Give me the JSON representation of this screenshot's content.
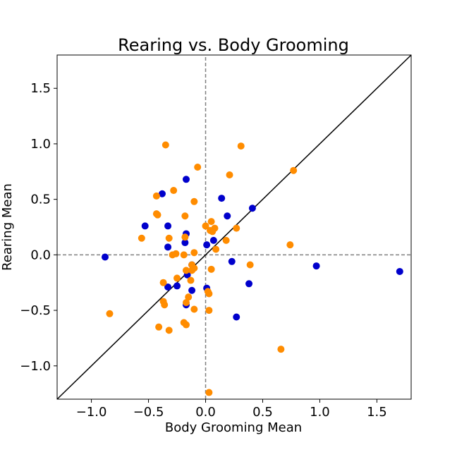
{
  "chart_data": {
    "type": "scatter",
    "title": "Rearing vs. Body Grooming",
    "xlabel": "Body Grooming Mean",
    "ylabel": "Rearing Mean",
    "xlim": [
      -1.3,
      1.8
    ],
    "ylim": [
      -1.3,
      1.8
    ],
    "xticks": [
      -1.0,
      -0.5,
      0.0,
      0.5,
      1.0,
      1.5
    ],
    "xtick_labels": [
      "−1.0",
      "−0.5",
      "0.0",
      "0.5",
      "1.0",
      "1.5"
    ],
    "yticks": [
      -1.0,
      -0.5,
      0.0,
      0.5,
      1.0,
      1.5
    ],
    "ytick_labels": [
      "−1.0",
      "−0.5",
      "0.0",
      "0.5",
      "1.0",
      "1.5"
    ],
    "grid": false,
    "legend": "none",
    "reference_lines": {
      "diagonal": "y = x",
      "horizontal_dashed_at": 0.0,
      "vertical_dashed_at": 0.0
    },
    "series": [
      {
        "color": "#0000cc",
        "points": [
          [
            -0.88,
            -0.02
          ],
          [
            -0.53,
            0.26
          ],
          [
            -0.38,
            0.55
          ],
          [
            -0.17,
            0.68
          ],
          [
            -0.33,
            0.26
          ],
          [
            -0.33,
            0.07
          ],
          [
            -0.18,
            0.11
          ],
          [
            -0.17,
            0.19
          ],
          [
            -0.12,
            -0.09
          ],
          [
            -0.16,
            -0.18
          ],
          [
            -0.25,
            -0.28
          ],
          [
            -0.33,
            -0.29
          ],
          [
            -0.12,
            -0.32
          ],
          [
            -0.17,
            -0.45
          ],
          [
            0.14,
            0.51
          ],
          [
            0.19,
            0.35
          ],
          [
            0.41,
            0.42
          ],
          [
            0.01,
            0.09
          ],
          [
            0.07,
            0.13
          ],
          [
            0.01,
            -0.3
          ],
          [
            0.23,
            -0.06
          ],
          [
            0.38,
            -0.26
          ],
          [
            0.27,
            -0.56
          ],
          [
            0.97,
            -0.1
          ],
          [
            1.7,
            -0.15
          ]
        ]
      },
      {
        "color": "#ff8c00",
        "points": [
          [
            -0.35,
            0.99
          ],
          [
            -0.07,
            0.79
          ],
          [
            0.31,
            0.98
          ],
          [
            0.21,
            0.72
          ],
          [
            0.77,
            0.76
          ],
          [
            -0.43,
            0.53
          ],
          [
            -0.28,
            0.58
          ],
          [
            -0.1,
            0.48
          ],
          [
            -0.43,
            0.37
          ],
          [
            -0.42,
            0.36
          ],
          [
            -0.18,
            0.35
          ],
          [
            -0.56,
            0.15
          ],
          [
            -0.32,
            0.15
          ],
          [
            -0.18,
            0.16
          ],
          [
            0.0,
            0.26
          ],
          [
            0.05,
            0.3
          ],
          [
            0.08,
            0.24
          ],
          [
            0.04,
            0.22
          ],
          [
            0.06,
            0.21
          ],
          [
            0.27,
            0.24
          ],
          [
            0.18,
            0.13
          ],
          [
            0.09,
            0.05
          ],
          [
            -0.29,
            0.0
          ],
          [
            -0.26,
            0.01
          ],
          [
            -0.19,
            0.0
          ],
          [
            -0.1,
            0.02
          ],
          [
            0.74,
            0.09
          ],
          [
            -0.12,
            -0.09
          ],
          [
            -0.1,
            -0.12
          ],
          [
            -0.12,
            -0.14
          ],
          [
            -0.17,
            -0.14
          ],
          [
            0.05,
            -0.13
          ],
          [
            0.39,
            -0.09
          ],
          [
            -0.25,
            -0.21
          ],
          [
            -0.13,
            -0.23
          ],
          [
            -0.37,
            -0.25
          ],
          [
            0.02,
            -0.33
          ],
          [
            0.03,
            -0.35
          ],
          [
            -0.15,
            -0.38
          ],
          [
            -0.37,
            -0.42
          ],
          [
            -0.36,
            -0.45
          ],
          [
            -0.17,
            -0.43
          ],
          [
            -0.1,
            -0.49
          ],
          [
            0.03,
            -0.5
          ],
          [
            -0.84,
            -0.53
          ],
          [
            -0.19,
            -0.61
          ],
          [
            -0.17,
            -0.63
          ],
          [
            -0.41,
            -0.65
          ],
          [
            -0.32,
            -0.68
          ],
          [
            0.66,
            -0.85
          ],
          [
            0.03,
            -1.24
          ]
        ]
      }
    ]
  }
}
